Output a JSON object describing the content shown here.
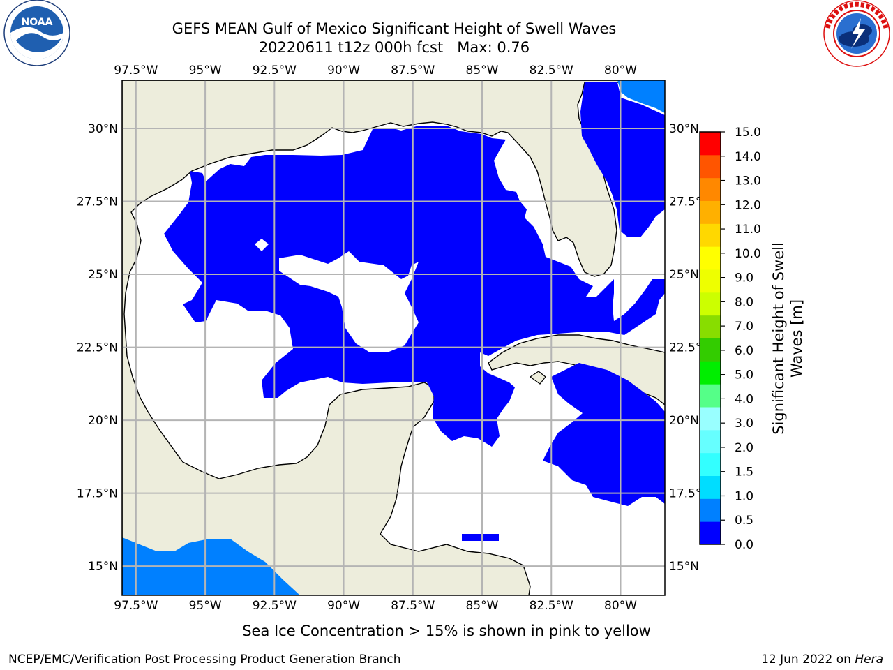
{
  "header": {
    "title_line1": "GEFS MEAN Gulf of Mexico Significant Height of Swell Waves",
    "title_line2": "20220611 t12z 000h fcst   Max: 0.76"
  },
  "logos": {
    "left": {
      "name": "noaa-logo",
      "text": "NOAA",
      "ring_text": "NATIONAL OCEANIC AND ATMOSPHERIC ADMINISTRATION · U.S. DEPARTMENT OF COMMERCE"
    },
    "right": {
      "name": "nws-logo",
      "ring_text": "NATIONAL WEATHER SERVICE"
    }
  },
  "map": {
    "lon_ticks": [
      "97.5°W",
      "95°W",
      "92.5°W",
      "90°W",
      "87.5°W",
      "85°W",
      "82.5°W",
      "80°W"
    ],
    "lon_values": [
      -97.5,
      -95,
      -92.5,
      -90,
      -87.5,
      -85,
      -82.5,
      -80
    ],
    "lat_ticks": [
      "30°N",
      "27.5°N",
      "25°N",
      "22.5°N",
      "20°N",
      "17.5°N",
      "15°N"
    ],
    "lat_values": [
      30,
      27.5,
      25,
      22.5,
      20,
      17.5,
      15
    ],
    "lon_range": [
      -98,
      -78.4
    ],
    "lat_range": [
      14,
      31.65
    ],
    "colors": {
      "land": "#ededdc",
      "ocean_no_data": "#ffffff",
      "swell_0_0_5": "#0000ff",
      "swell_0_5_1_0": "#0080ff",
      "grid": "#b4b4b4",
      "coast": "#000000"
    }
  },
  "colorbar": {
    "label": "Significant Height of Swell Waves [m]",
    "ticks": [
      "0.0",
      "0.5",
      "1.0",
      "1.5",
      "2.0",
      "3.0",
      "4.0",
      "5.0",
      "6.0",
      "7.0",
      "8.0",
      "9.0",
      "10.0",
      "11.0",
      "12.0",
      "13.0",
      "14.0",
      "15.0"
    ],
    "colors": [
      "#0000ff",
      "#0080ff",
      "#00ddff",
      "#33ffff",
      "#66ffff",
      "#99ffff",
      "#55ff88",
      "#00ee00",
      "#33cc00",
      "#88dd00",
      "#ccff00",
      "#eeff00",
      "#ffff00",
      "#ffd800",
      "#ffb000",
      "#ff8800",
      "#ff5500",
      "#ff0000"
    ]
  },
  "footer": {
    "note": "Sea Ice Concentration > 15% is shown in pink to yellow",
    "credit": "NCEP/EMC/Verification Post Processing Product Generation Branch",
    "date": "12 Jun 2022 on ",
    "host": "Hera"
  }
}
